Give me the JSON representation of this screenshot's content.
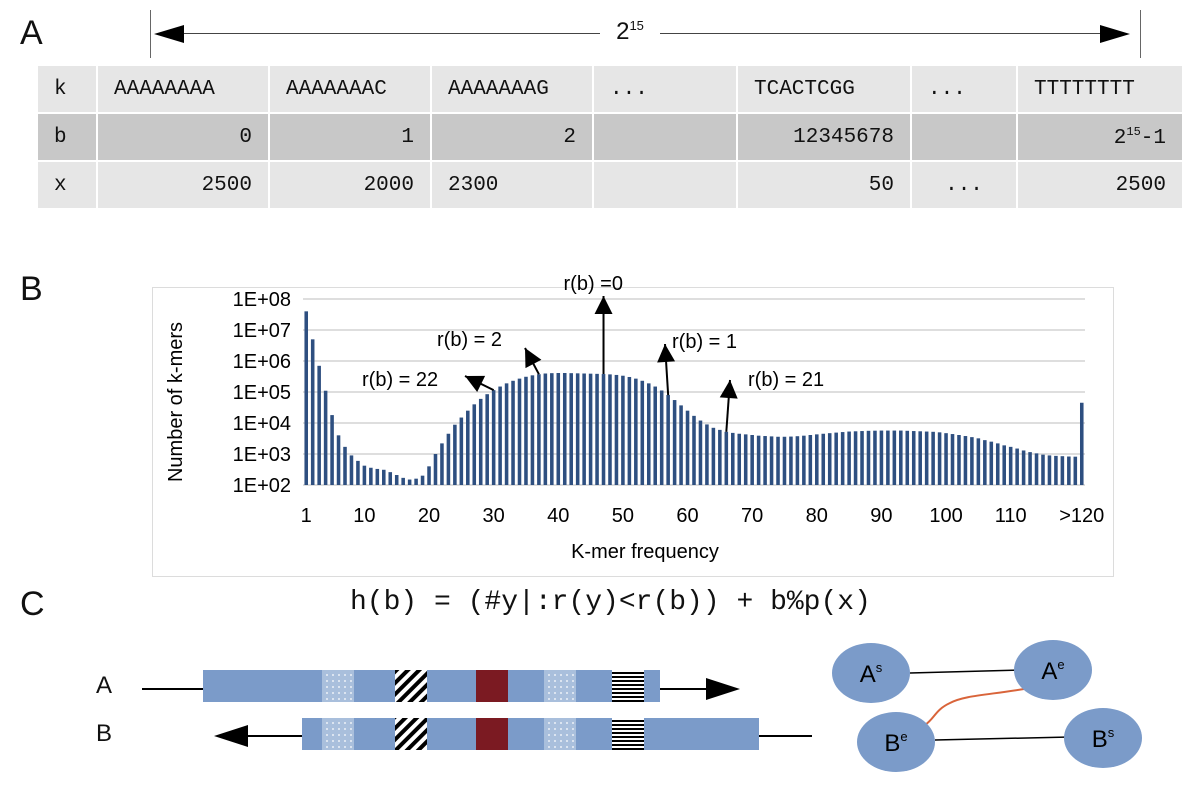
{
  "panels": {
    "a": "A",
    "b": "B",
    "c": "C"
  },
  "span": {
    "base": "2",
    "exp": "15"
  },
  "table": {
    "rows": [
      {
        "head": "k",
        "cells": [
          "AAAAAAAA",
          "AAAAAAAC",
          "AAAAAAAG",
          "...",
          "TCACTCGG",
          "...",
          "TTTTTTTT"
        ]
      },
      {
        "head": "b",
        "cells": [
          "0",
          "1",
          "2",
          "",
          "12345678",
          "",
          ""
        ],
        "last": {
          "base": "2",
          "exp": "15",
          "suffix": "-1"
        }
      },
      {
        "head": "x",
        "cells": [
          "2500",
          "2000",
          "2300",
          "",
          "50",
          "...",
          "2500"
        ]
      }
    ]
  },
  "chart_data": {
    "type": "bar",
    "ylabel": "Number of k-mers",
    "xlabel": "K-mer frequency",
    "yscale": "log",
    "ylim": [
      100,
      100000000
    ],
    "y_ticks": [
      "1E+02",
      "1E+03",
      "1E+04",
      "1E+05",
      "1E+06",
      "1E+07",
      "1E+08"
    ],
    "x_ticks": [
      "1",
      "10",
      "20",
      "30",
      "40",
      "50",
      "60",
      "70",
      "80",
      "90",
      "100",
      "110",
      ">120"
    ],
    "grid": true,
    "x": [
      1,
      2,
      3,
      4,
      5,
      6,
      7,
      8,
      9,
      10,
      11,
      12,
      13,
      14,
      15,
      16,
      17,
      18,
      19,
      20,
      21,
      22,
      23,
      24,
      25,
      26,
      27,
      28,
      29,
      30,
      31,
      32,
      33,
      34,
      35,
      36,
      37,
      38,
      39,
      40,
      41,
      42,
      43,
      44,
      45,
      46,
      47,
      48,
      49,
      50,
      51,
      52,
      53,
      54,
      55,
      56,
      57,
      58,
      59,
      60,
      61,
      62,
      63,
      64,
      65,
      66,
      67,
      68,
      69,
      70,
      71,
      72,
      73,
      74,
      75,
      76,
      77,
      78,
      79,
      80,
      81,
      82,
      83,
      84,
      85,
      86,
      87,
      88,
      89,
      90,
      91,
      92,
      93,
      94,
      95,
      96,
      97,
      98,
      99,
      100,
      101,
      102,
      103,
      104,
      105,
      106,
      107,
      108,
      109,
      110,
      111,
      112,
      113,
      114,
      115,
      116,
      117,
      118,
      119,
      120,
      121
    ],
    "values": [
      40000000,
      5000000,
      700000,
      110000,
      18000,
      4000,
      1700,
      900,
      600,
      420,
      360,
      330,
      310,
      260,
      210,
      170,
      150,
      160,
      200,
      400,
      1000,
      2200,
      4500,
      8800,
      15000,
      25000,
      40000,
      60000,
      85000,
      115000,
      150000,
      190000,
      230000,
      270000,
      310000,
      345000,
      375000,
      395000,
      405000,
      410000,
      410000,
      405000,
      400000,
      395000,
      390000,
      385000,
      380000,
      370000,
      355000,
      335000,
      305000,
      270000,
      230000,
      190000,
      150000,
      112000,
      80000,
      55000,
      37000,
      25000,
      17000,
      12000,
      9000,
      7000,
      6000,
      5200,
      4800,
      4500,
      4300,
      4100,
      3900,
      3800,
      3700,
      3600,
      3600,
      3650,
      3750,
      3900,
      4100,
      4300,
      4500,
      4700,
      4900,
      5100,
      5300,
      5400,
      5500,
      5600,
      5650,
      5700,
      5700,
      5700,
      5700,
      5600,
      5500,
      5400,
      5300,
      5200,
      5000,
      4700,
      4400,
      4100,
      3800,
      3500,
      3200,
      2800,
      2500,
      2200,
      1900,
      1700,
      1500,
      1300,
      1150,
      1050,
      950,
      900,
      870,
      850,
      830,
      820,
      45000
    ],
    "bar_color": "#2e4f80",
    "annotations": [
      {
        "text": "r(b) =0",
        "x": 47
      },
      {
        "text": "r(b) = 2",
        "x": 37
      },
      {
        "text": "r(b) = 1",
        "x": 57
      },
      {
        "text": "r(b) = 22",
        "x": 30
      },
      {
        "text": "r(b) = 21",
        "x": 66
      }
    ]
  },
  "formula": "h(b) = (#y|:r(y)<r(b)) + b%p(x)",
  "strands": {
    "a": "A",
    "b": "B"
  },
  "nodes": [
    {
      "id": "as",
      "base": "A",
      "sup": "s"
    },
    {
      "id": "ae",
      "base": "A",
      "sup": "e"
    },
    {
      "id": "be",
      "base": "B",
      "sup": "e"
    },
    {
      "id": "bs",
      "base": "B",
      "sup": "s"
    }
  ],
  "colors": {
    "strand": "#7b9bc9",
    "block_red": "#7b1a22",
    "node": "#7b9bc9",
    "edge_red": "#d9643a"
  }
}
